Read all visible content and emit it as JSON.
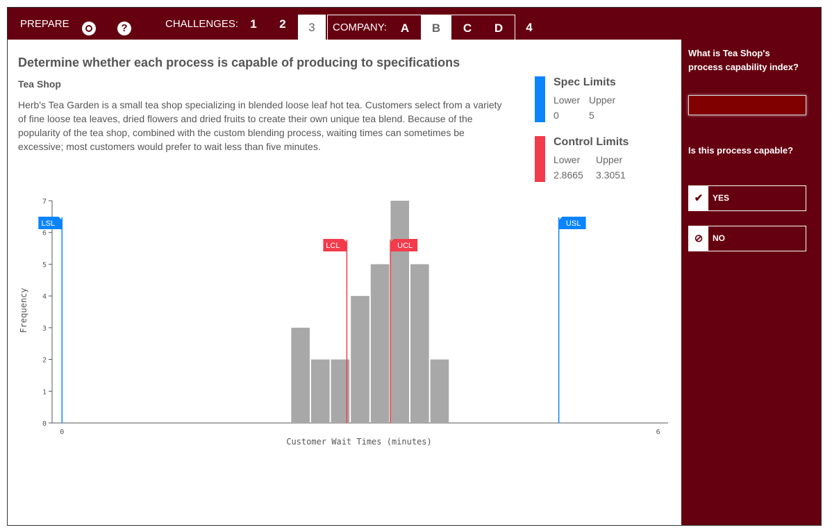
{
  "nav": {
    "prepare": "PREPARE",
    "challenges_label": "CHALLENGES:",
    "challenges": [
      "1",
      "2",
      "3",
      "4"
    ],
    "active_challenge": "3",
    "company_label": "COMPANY:",
    "companies": [
      "A",
      "B",
      "C",
      "D"
    ],
    "active_company": "B",
    "icons": [
      "lifebuoy-icon",
      "help-icon"
    ]
  },
  "main": {
    "heading": "Determine whether each process is capable of producing to specifications",
    "subheading": "Tea Shop",
    "description": "Herb's Tea Garden is a small tea shop specializing in blended loose leaf hot tea. Customers select from a variety of fine loose tea leaves, dried flowers and dried fruits to create their own unique tea blend. Because of the popularity of the tea shop, combined with the custom blending process, waiting times can sometimes be excessive; most customers would prefer to wait less than five minutes."
  },
  "spec_limits": {
    "title": "Spec Limits",
    "lower_label": "Lower",
    "upper_label": "Upper",
    "lower": "0",
    "upper": "5",
    "color": "#0a84ff"
  },
  "control_limits": {
    "title": "Control Limits",
    "lower_label": "Lower",
    "upper_label": "Upper",
    "lower": "2.8665",
    "upper": "3.3051",
    "color": "#f23b4b"
  },
  "chart_data": {
    "type": "bar",
    "title": "",
    "xlabel": "Customer Wait Times (minutes)",
    "ylabel": "Frequency",
    "x_ticks": [
      "0",
      "6"
    ],
    "y_ticks": [
      "0",
      "1",
      "2",
      "3",
      "4",
      "5",
      "6",
      "7"
    ],
    "xlim": [
      -0.1,
      6.1
    ],
    "ylim": [
      0,
      7
    ],
    "bin_width": 0.2,
    "bins": [
      {
        "x0": 2.3,
        "count": 3
      },
      {
        "x0": 2.5,
        "count": 2
      },
      {
        "x0": 2.7,
        "count": 2
      },
      {
        "x0": 2.9,
        "count": 4
      },
      {
        "x0": 3.1,
        "count": 5
      },
      {
        "x0": 3.3,
        "count": 7
      },
      {
        "x0": 3.5,
        "count": 5
      },
      {
        "x0": 3.7,
        "count": 2
      }
    ],
    "markers": [
      {
        "label": "LSL",
        "value": 0,
        "color": "#0a84ff"
      },
      {
        "label": "LCL",
        "value": 2.8665,
        "color": "#f23b4b"
      },
      {
        "label": "UCL",
        "value": 3.3051,
        "color": "#f23b4b"
      },
      {
        "label": "USL",
        "value": 5,
        "color": "#0a84ff"
      }
    ],
    "bar_color": "#a8a8a8"
  },
  "side": {
    "q1": "What is Tea Shop's process capability index?",
    "input_value": "",
    "q2": "Is this process capable?",
    "yes": "YES",
    "no": "NO"
  }
}
